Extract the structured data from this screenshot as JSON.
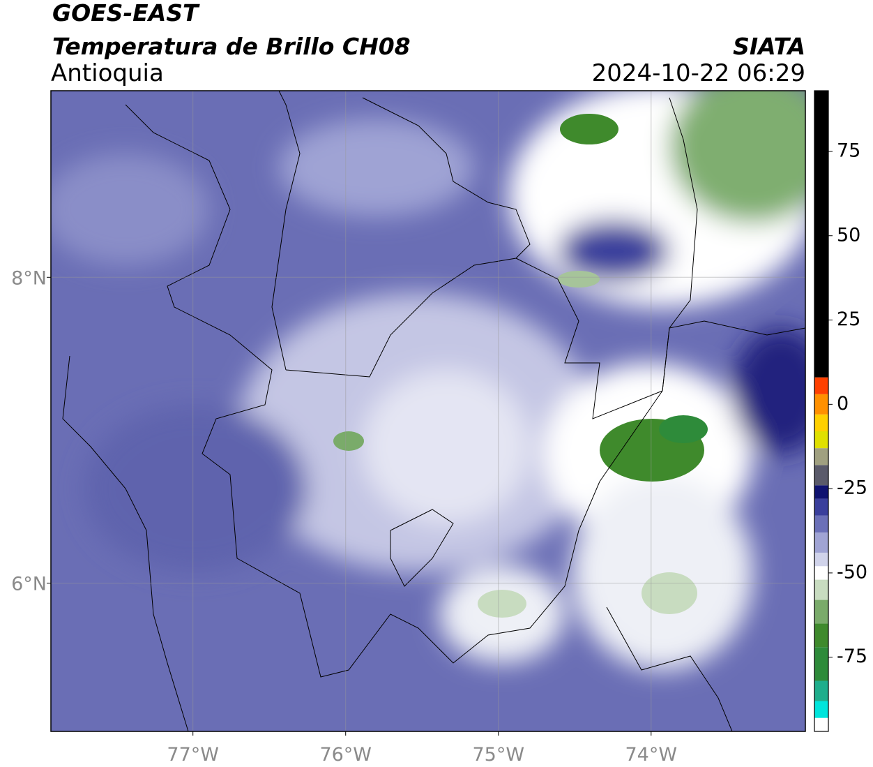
{
  "header": {
    "line1": "GOES-EAST",
    "line2": "Temperatura de Brillo CH08",
    "region": "Antioquia",
    "source": "SIATA",
    "timestamp": "2024-10-22 06:29"
  },
  "map": {
    "xlim": [
      -77.93,
      -72.99
    ],
    "ylim": [
      5.03,
      9.22
    ],
    "xticks": [
      {
        "value": -77,
        "label": "77°W"
      },
      {
        "value": -76,
        "label": "76°W"
      },
      {
        "value": -75,
        "label": "75°W"
      },
      {
        "value": -74,
        "label": "74°W"
      }
    ],
    "yticks": [
      {
        "value": 8,
        "label": "8°N"
      },
      {
        "value": 6,
        "label": "6°N"
      }
    ],
    "grid": true
  },
  "colorbar": {
    "lim": [
      -97,
      93
    ],
    "ticks": [
      75,
      50,
      25,
      0,
      -25,
      -50,
      -75
    ],
    "colormap": [
      {
        "value": -97,
        "color": "#ffffff"
      },
      {
        "value": -93,
        "color": "#00e5dc"
      },
      {
        "value": -88,
        "color": "#1fae8c"
      },
      {
        "value": -82,
        "color": "#2e8b3a"
      },
      {
        "value": -72,
        "color": "#3f8a2c"
      },
      {
        "value": -65,
        "color": "#7aab6a"
      },
      {
        "value": -58,
        "color": "#c8dcc0"
      },
      {
        "value": -52,
        "color": "#ffffff"
      },
      {
        "value": -48,
        "color": "#d0d3ea"
      },
      {
        "value": -44,
        "color": "#a0a4d4"
      },
      {
        "value": -38,
        "color": "#6b70b8"
      },
      {
        "value": -33,
        "color": "#3a3f9c"
      },
      {
        "value": -28,
        "color": "#0f1270"
      },
      {
        "value": -24,
        "color": "#5a5a6a"
      },
      {
        "value": -18,
        "color": "#a0a080"
      },
      {
        "value": -13,
        "color": "#e0e000"
      },
      {
        "value": -8,
        "color": "#ffd000"
      },
      {
        "value": -3,
        "color": "#ff9000"
      },
      {
        "value": 3,
        "color": "#ff4000"
      },
      {
        "value": 8,
        "color": "#000000"
      }
    ]
  }
}
